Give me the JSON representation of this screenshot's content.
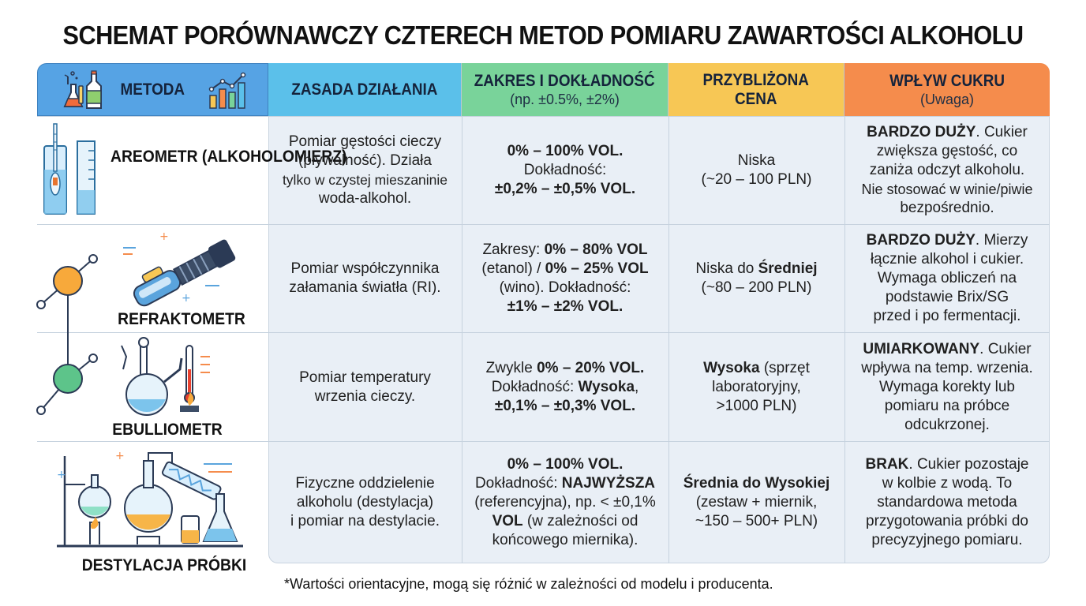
{
  "title": "SCHEMAT PORÓWNAWCZY CZTERECH METOD POMIARU ZAWARTOŚCI ALKOHOLU",
  "headers": {
    "method": "METODA",
    "principle": "ZASADA DZIAŁANIA",
    "range_main": "ZAKRES I DOKŁADNOŚĆ",
    "range_sub": "(np. ±0.5%, ±2%)",
    "price_line1": "PRZYBLIŻONA",
    "price_line2": "CENA",
    "sugar_main": "WPŁYW CUKRU",
    "sugar_sub": "(Uwaga)"
  },
  "rows": [
    {
      "method_line1": "AREOMETR",
      "method_line2": "(ALKOHOLOMIERZ)",
      "principle": [
        "Pomiar gęstości cieczy",
        "(pływalność). Działa",
        "tylko w czystej mieszaninie",
        "woda-alkohol."
      ],
      "range": {
        "l1": "0% – 100% VOL.",
        "l2": "Dokładność:",
        "l3": "±0,2% – ±0,5% VOL."
      },
      "price": [
        "Niska",
        "(~20 – 100 PLN)"
      ],
      "sugar": {
        "bold": "BARDZO DUŻY",
        "l1": ". Cukier",
        "l2": "zwiększa gęstość, co",
        "l3": "zaniża odczyt alkoholu.",
        "l4": "Nie stosować w winie/piwie",
        "l5": "bezpośrednio."
      }
    },
    {
      "method_line1": "REFRAKTOMETR",
      "principle": [
        "Pomiar współczynnika",
        "załamania światła (RI)."
      ],
      "range": {
        "p1": "Zakresy: ",
        "b1": "0% – 80% VOL",
        "p2": "(etanol) / ",
        "b2": "0% – 25% VOL",
        "p3": "(wino). Dokładność:",
        "b3": "±1% – ±2% VOL."
      },
      "price": {
        "p1": "Niska do ",
        "b1": "Średniej",
        "l2": "(~80 – 200 PLN)"
      },
      "sugar": {
        "bold": "BARDZO DUŻY",
        "l1": ". Mierzy",
        "l2": "łącznie alkohol i cukier.",
        "l3": "Wymaga obliczeń na",
        "l4": "podstawie Brix/SG",
        "l5": "przed i po fermentacji."
      }
    },
    {
      "method_line1": "EBULLIOMETR",
      "principle": [
        "Pomiar temperatury",
        "wrzenia cieczy."
      ],
      "range": {
        "p1": "Zwykle ",
        "b1": "0% – 20% VOL.",
        "p2": "Dokładność: ",
        "b2": "Wysoka",
        "p3": ",",
        "b3": "±0,1% – ±0,3% VOL."
      },
      "price": {
        "b1": "Wysoka",
        "p1": " (sprzęt",
        "l2": "laboratoryjny,",
        "l3": ">1000 PLN)"
      },
      "sugar": {
        "bold": "UMIARKOWANY",
        "l1": ". Cukier",
        "l2": "wpływa na temp. wrzenia.",
        "l3": "Wymaga korekty lub",
        "l4": "pomiaru na próbce",
        "l5": "odcukrzonej."
      }
    },
    {
      "method_line1": "DESTYLACJA PRÓBKI",
      "principle": [
        "Fizyczne oddzielenie",
        "alkoholu (destylacja)",
        "i pomiar na destylacie."
      ],
      "range": {
        "b1": "0% – 100% VOL.",
        "p2": "Dokładność: ",
        "b2": "NAJWYŻSZA",
        "l3": "(referencyjna), np. < ±0,1%",
        "b4": "VOL",
        "p4": " (w zależności od",
        "l5": "końcowego miernika)."
      },
      "price": {
        "b1": "Średnia do Wysokiej",
        "l2": "(zestaw + miernik,",
        "l3": "~150 – 500+ PLN)"
      },
      "sugar": {
        "bold": "BRAK",
        "l1": ". Cukier pozostaje",
        "l2": "w kolbie z wodą. To",
        "l3": "standardowa metoda",
        "l4": "przygotowania próbki do",
        "l5": "precyzyjnego pomiaru."
      }
    }
  ],
  "footnote": "*Wartości orientacyjne, mogą się różnić w zależności od modelu i producenta.",
  "colors": {
    "header_method": "#56a3e4",
    "header_principle": "#5bc0ea",
    "header_range": "#79d39a",
    "header_price": "#f7c755",
    "header_sugar": "#f58c4c",
    "table_bg": "#e9eff6"
  }
}
